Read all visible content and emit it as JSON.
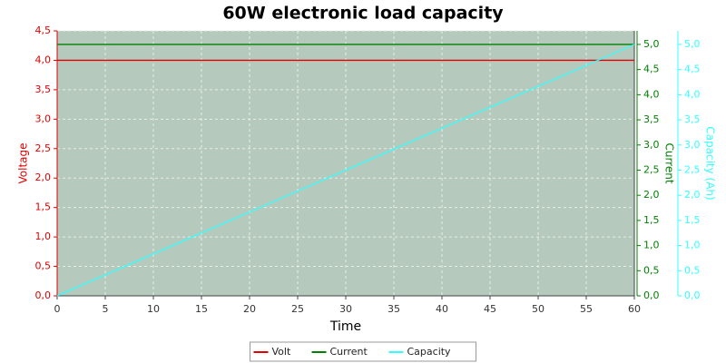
{
  "chart_data": {
    "type": "line",
    "title": "60W electronic load capacity",
    "x_label": "Time",
    "y_label": "Voltage",
    "y2_label": "Current",
    "y3_label": "Capacity (Ah)",
    "x": [
      0,
      60
    ],
    "series": [
      {
        "name": "Volt",
        "color": "#e00000",
        "values": [
          4.0,
          4.0
        ]
      },
      {
        "name": "Current",
        "color": "#008000",
        "values": [
          5.0,
          5.0
        ],
        "axis": "y2"
      },
      {
        "name": "Capacity",
        "color": "#33ffff",
        "values": [
          0.0,
          5.0
        ],
        "axis": "y3"
      }
    ],
    "xlim": [
      0,
      60
    ],
    "xticks": [
      0,
      5,
      10,
      15,
      20,
      25,
      30,
      35,
      40,
      45,
      50,
      55,
      60
    ],
    "ylim": [
      0,
      4.5
    ],
    "yticks": [
      {
        "value": 0,
        "label": "0,0"
      },
      {
        "value": 0.5,
        "label": "0,5"
      },
      {
        "value": 1,
        "label": "1,0"
      },
      {
        "value": 1.5,
        "label": "1,5"
      },
      {
        "value": 2,
        "label": "2,0"
      },
      {
        "value": 2.5,
        "label": "2,5"
      },
      {
        "value": 3,
        "label": "3,0"
      },
      {
        "value": 3.5,
        "label": "3,5"
      },
      {
        "value": 4,
        "label": "4,0"
      },
      {
        "value": 4.5,
        "label": "4,5"
      }
    ],
    "y2lim": [
      0,
      5.27
    ],
    "y2ticks": [
      {
        "value": 0,
        "label": "0,0"
      },
      {
        "value": 0.5,
        "label": "0,5"
      },
      {
        "value": 1,
        "label": "1,0"
      },
      {
        "value": 1.5,
        "label": "1,5"
      },
      {
        "value": 2,
        "label": "2,0"
      },
      {
        "value": 2.5,
        "label": "2,5"
      },
      {
        "value": 3,
        "label": "3,0"
      },
      {
        "value": 3.5,
        "label": "3,5"
      },
      {
        "value": 4,
        "label": "4,0"
      },
      {
        "value": 4.5,
        "label": "4,5"
      },
      {
        "value": 5,
        "label": "5,0"
      }
    ],
    "y3lim": [
      0,
      5.27
    ],
    "y3ticks": [
      {
        "value": 0,
        "label": "0,0"
      },
      {
        "value": 0.5,
        "label": "0,5"
      },
      {
        "value": 1,
        "label": "1,0"
      },
      {
        "value": 1.5,
        "label": "1,5"
      },
      {
        "value": 2,
        "label": "2,0"
      },
      {
        "value": 2.5,
        "label": "2,5"
      },
      {
        "value": 3,
        "label": "3,0"
      },
      {
        "value": 3.5,
        "label": "3,5"
      },
      {
        "value": 4,
        "label": "4,0"
      },
      {
        "value": 4.5,
        "label": "4,5"
      },
      {
        "value": 5,
        "label": "5,0"
      }
    ],
    "grid": true,
    "legend": "bottom",
    "plot_background": "#b5c9bd"
  }
}
